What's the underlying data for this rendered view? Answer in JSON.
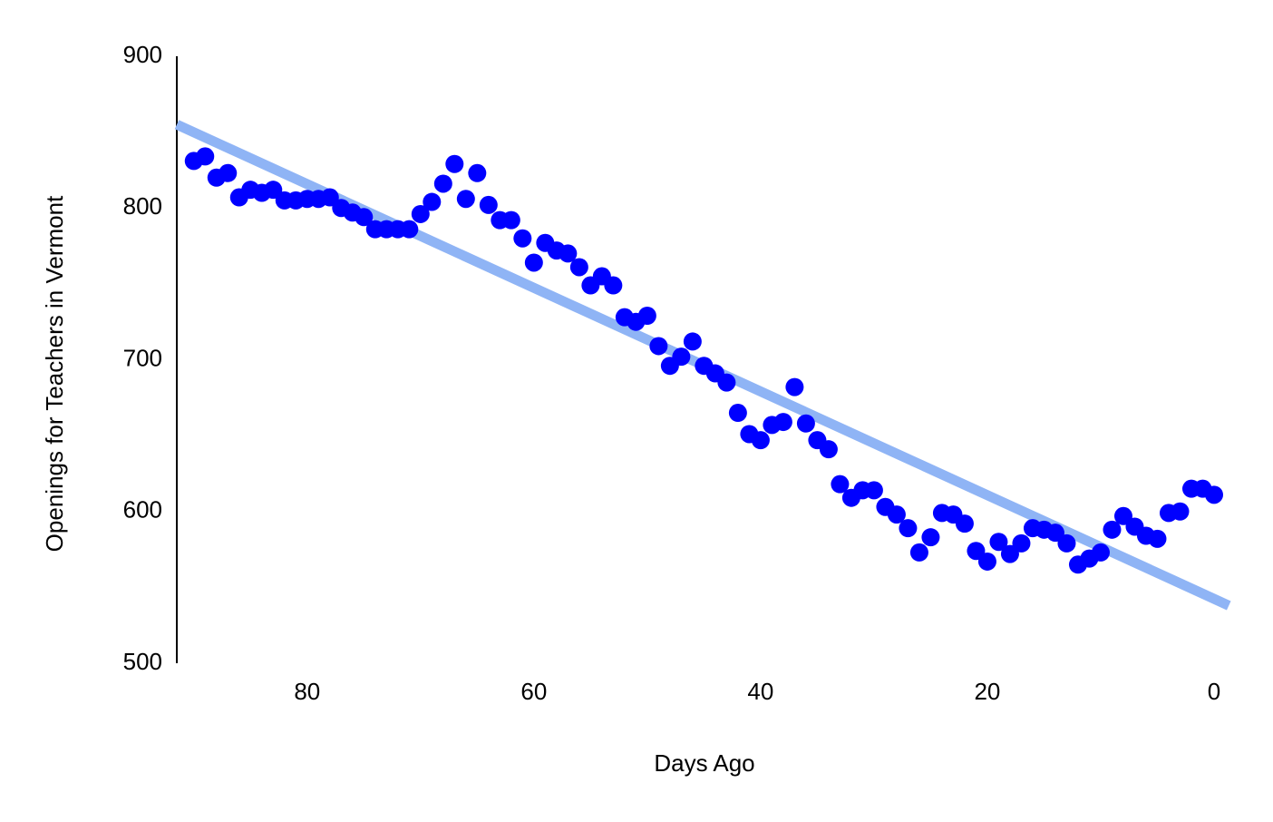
{
  "chart_data": {
    "type": "scatter",
    "x_label": "Days Ago",
    "y_label": "Openings for Teachers in Vermont",
    "x": [
      90,
      89,
      88,
      87,
      86,
      85,
      84,
      83,
      82,
      81,
      80,
      79,
      78,
      77,
      76,
      75,
      74,
      73,
      72,
      71,
      70,
      69,
      68,
      67,
      66,
      65,
      64,
      63,
      62,
      61,
      60,
      59,
      58,
      57,
      56,
      55,
      54,
      53,
      52,
      51,
      50,
      49,
      48,
      47,
      46,
      45,
      44,
      43,
      42,
      41,
      40,
      39,
      38,
      37,
      36,
      35,
      34,
      33,
      32,
      31,
      30,
      29,
      28,
      27,
      26,
      25,
      24,
      23,
      22,
      21,
      20,
      19,
      18,
      17,
      16,
      15,
      14,
      13,
      12,
      11,
      10,
      9,
      8,
      7,
      6,
      5,
      4,
      3,
      2,
      1,
      0
    ],
    "series": [
      {
        "color": "#0000ff",
        "values": [
          831,
          834,
          820,
          823,
          807,
          812,
          810,
          812,
          805,
          805,
          806,
          806,
          807,
          800,
          797,
          794,
          786,
          786,
          786,
          786,
          796,
          804,
          816,
          829,
          806,
          823,
          802,
          792,
          792,
          780,
          764,
          777,
          772,
          770,
          761,
          749,
          755,
          749,
          728,
          725,
          729,
          709,
          696,
          702,
          712,
          696,
          691,
          685,
          665,
          651,
          647,
          657,
          659,
          682,
          658,
          647,
          641,
          618,
          609,
          614,
          614,
          603,
          598,
          589,
          573,
          583,
          599,
          598,
          592,
          574,
          567,
          580,
          572,
          579,
          589,
          588,
          586,
          579,
          565,
          569,
          573,
          588,
          597,
          590,
          584,
          582,
          599,
          600,
          615,
          615,
          611
        ]
      }
    ],
    "trendline": {
      "color": "#8fb4f5",
      "x": [
        91.5,
        -1.3
      ],
      "values": [
        855,
        538
      ]
    },
    "xlim": [
      91.5,
      -1.5
    ],
    "ylim": [
      500,
      900
    ],
    "xticks": [
      80,
      60,
      40,
      20,
      0
    ],
    "yticks": [
      500,
      600,
      700,
      800,
      900
    ]
  }
}
